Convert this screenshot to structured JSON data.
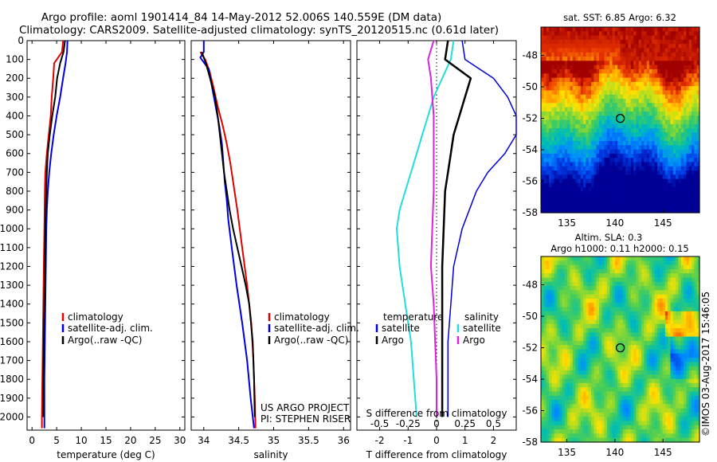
{
  "header": {
    "line1": "Argo profile: aoml 1901414_84 14-May-2012 52.006S 140.559E (DM data)",
    "line2": "Climatology: CARS2009. Satellite-adjusted climatology: synTS_20120515.nc (0.61d later)"
  },
  "colors": {
    "climatology": "#e00000",
    "satellite": "#0000dd",
    "argo": "#000000",
    "satellite_s": "#22dddd",
    "argo_s": "#dd22dd"
  },
  "credits": {
    "project": "US ARGO PROJECT",
    "pi": "PI: STEPHEN RISER",
    "stamp": "©IMOS 03-Aug-2017 15:46:05"
  },
  "chart_data": [
    {
      "type": "line",
      "xlabel": "temperature (deg C)",
      "xlim": [
        -1,
        31
      ],
      "ylim": [
        2070,
        0
      ],
      "x_ticks": [
        0,
        5,
        10,
        15,
        20,
        25,
        30
      ],
      "y_ticks": [
        0,
        100,
        200,
        300,
        400,
        500,
        600,
        700,
        800,
        900,
        1000,
        1100,
        1200,
        1300,
        1400,
        1500,
        1600,
        1700,
        1800,
        1900,
        2000
      ],
      "legend": [
        "climatology",
        "satellite-adj. clim.",
        "Argo(..raw -QC)"
      ],
      "series": [
        {
          "name": "climatology",
          "depth": [
            0,
            60,
            120,
            200,
            300,
            400,
            500,
            600,
            700,
            800,
            1000,
            1200,
            1400,
            1600,
            1800,
            2000,
            2060
          ],
          "values": [
            6.3,
            6.1,
            4.5,
            4.3,
            4.0,
            3.8,
            3.4,
            3.0,
            2.7,
            2.6,
            2.5,
            2.4,
            2.3,
            2.2,
            2.1,
            2.0,
            2.0
          ]
        },
        {
          "name": "satellite-adj. clim.",
          "depth": [
            0,
            60,
            120,
            200,
            300,
            400,
            500,
            600,
            700,
            800,
            900,
            1000,
            1200,
            1400,
            1600,
            1800,
            2000,
            2060
          ],
          "values": [
            7.2,
            7.1,
            6.8,
            6.3,
            5.7,
            5.0,
            4.4,
            3.9,
            3.5,
            3.2,
            3.0,
            2.9,
            2.8,
            2.7,
            2.6,
            2.5,
            2.5,
            2.5
          ]
        },
        {
          "name": "Argo(..raw -QC)",
          "depth": [
            0,
            60,
            120,
            200,
            300,
            400,
            500,
            600,
            700,
            800,
            900,
            1000,
            1200,
            1400,
            1600,
            1800,
            2000
          ],
          "values": [
            6.7,
            6.4,
            5.7,
            5.1,
            4.7,
            4.1,
            3.6,
            3.2,
            3.0,
            2.9,
            2.8,
            2.7,
            2.6,
            2.5,
            2.4,
            2.3,
            2.3
          ]
        }
      ]
    },
    {
      "type": "line",
      "xlabel": "salinity",
      "xlim": [
        33.82,
        36.1
      ],
      "ylim": [
        2070,
        0
      ],
      "x_ticks": [
        34,
        34.5,
        35,
        35.5,
        36
      ],
      "legend": [
        "climatology",
        "satellite-adj. clim.",
        "Argo(..raw -QC)"
      ],
      "series": [
        {
          "name": "climatology",
          "depth": [
            60,
            100,
            160,
            250,
            350,
            450,
            550,
            650,
            750,
            900,
            1100,
            1300,
            1500,
            1700,
            1900,
            2060
          ],
          "values": [
            33.95,
            34.02,
            34.08,
            34.14,
            34.2,
            34.27,
            34.33,
            34.38,
            34.42,
            34.48,
            34.55,
            34.62,
            34.68,
            34.71,
            34.73,
            34.74
          ]
        },
        {
          "name": "satellite-adj. clim.",
          "depth": [
            0,
            60,
            90,
            150,
            250,
            350,
            450,
            550,
            650,
            750,
            850,
            950,
            1100,
            1300,
            1500,
            1700,
            1900,
            2060
          ],
          "values": [
            34.0,
            34.0,
            33.95,
            34.07,
            34.12,
            34.17,
            34.22,
            34.26,
            34.28,
            34.3,
            34.33,
            34.35,
            34.4,
            34.47,
            34.55,
            34.62,
            34.67,
            34.72
          ]
        },
        {
          "name": "Argo(..raw -QC)",
          "depth": [
            60,
            120,
            200,
            300,
            400,
            500,
            600,
            700,
            800,
            900,
            1000,
            1100,
            1200,
            1300,
            1400,
            1600,
            1800,
            2000
          ],
          "values": [
            33.97,
            34.03,
            34.09,
            34.16,
            34.2,
            34.23,
            34.26,
            34.29,
            34.33,
            34.37,
            34.42,
            34.48,
            34.54,
            34.6,
            34.65,
            34.7,
            34.72,
            34.73
          ]
        }
      ]
    },
    {
      "type": "line",
      "xlabel": "T difference from climatology",
      "xlabel_top": "S difference from climatology",
      "xlim": [
        -2.8,
        2.8
      ],
      "ylim": [
        2070,
        0
      ],
      "x_ticks": [
        -2,
        -1,
        0,
        1,
        2
      ],
      "s_ticks": [
        {
          "label": "-0.5",
          "t": -2
        },
        {
          "label": "-0.25",
          "t": -1
        },
        {
          "label": "0",
          "t": 0
        },
        {
          "label": "0.25",
          "t": 1
        },
        {
          "label": "0.5",
          "t": 2
        }
      ],
      "legend_titles": [
        "temperature",
        "salinity"
      ],
      "legend": [
        "satellite",
        "Argo",
        "satellite",
        "Argo"
      ],
      "series": [
        {
          "name": "satellite",
          "depth": [
            0,
            100,
            200,
            300,
            400,
            500,
            600,
            700,
            800,
            1000,
            1200,
            1400,
            1600,
            1800,
            2000
          ],
          "values": [
            0.9,
            1.0,
            2.0,
            2.5,
            2.8,
            2.8,
            2.4,
            1.8,
            1.4,
            0.9,
            0.6,
            0.5,
            0.4,
            0.4,
            0.4
          ]
        },
        {
          "name": "Argo",
          "depth": [
            0,
            100,
            200,
            300,
            400,
            500,
            600,
            700,
            800,
            1000,
            1200,
            1400,
            1600,
            1800,
            2000
          ],
          "values": [
            0.4,
            0.3,
            1.2,
            1.0,
            0.8,
            0.6,
            0.5,
            0.4,
            0.3,
            0.25,
            0.2,
            0.2,
            0.2,
            0.2,
            0.2
          ]
        },
        {
          "name": "satellite",
          "depth": [
            0,
            100,
            200,
            300,
            400,
            500,
            600,
            700,
            800,
            900,
            1000,
            1200,
            1400,
            1600,
            1800,
            2000
          ],
          "values": [
            0.6,
            0.5,
            0.2,
            -0.1,
            -0.3,
            -0.5,
            -0.7,
            -0.9,
            -1.1,
            -1.3,
            -1.4,
            -1.3,
            -1.1,
            -0.9,
            -0.8,
            -0.7
          ]
        },
        {
          "name": "Argo",
          "depth": [
            0,
            100,
            200,
            300,
            400,
            500,
            600,
            800,
            1000,
            1200,
            1400,
            1600,
            1800,
            2000
          ],
          "values": [
            -0.1,
            -0.3,
            -0.2,
            -0.15,
            -0.1,
            -0.1,
            -0.1,
            -0.1,
            -0.15,
            -0.2,
            -0.1,
            -0.05,
            0,
            0
          ]
        }
      ]
    },
    {
      "type": "heatmap",
      "title": "sat. SST: 6.85 Argo: 6.32",
      "xlim": [
        132.3,
        148.8
      ],
      "ylim": [
        -58,
        -46.2
      ],
      "x_ticks": [
        135,
        140,
        145
      ],
      "y_ticks": [
        -48,
        -50,
        -52,
        -54,
        -56,
        -58
      ],
      "point": {
        "lon": 140.559,
        "lat": -52.006
      }
    },
    {
      "type": "heatmap",
      "title": "Altim. SLA: 0.3",
      "subtitle": "Argo h1000: 0.11 h2000: 0.15",
      "xlim": [
        132.3,
        148.8
      ],
      "ylim": [
        -58,
        -46.2
      ],
      "x_ticks": [
        135,
        140,
        145
      ],
      "y_ticks": [
        -48,
        -50,
        -52,
        -54,
        -56,
        -58
      ],
      "point": {
        "lon": 140.559,
        "lat": -52.006
      }
    }
  ]
}
